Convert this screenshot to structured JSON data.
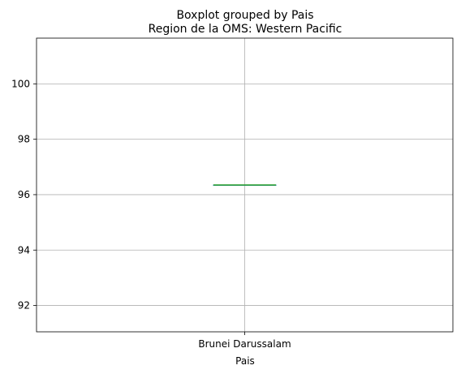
{
  "chart_data": {
    "type": "box",
    "suptitle": "Boxplot grouped by Pais",
    "title": "Region de la OMS: Western Pacific",
    "xlabel": "Pais",
    "ylabel": "",
    "categories": [
      "Brunei Darussalam"
    ],
    "boxes": [
      {
        "category": "Brunei Darussalam",
        "min": 96.35,
        "q1": 96.35,
        "median": 96.35,
        "q3": 96.35,
        "max": 96.35
      }
    ],
    "ylim": [
      91.05,
      101.65
    ],
    "yticks": [
      92,
      94,
      96,
      98,
      100
    ],
    "ytick_labels": [
      "92",
      "94",
      "96",
      "98",
      "100"
    ],
    "grid": true,
    "colors": {
      "box": "#1f77b4",
      "median": "#2ca02c",
      "grid": "#b0b0b0",
      "axes": "#000000"
    }
  }
}
